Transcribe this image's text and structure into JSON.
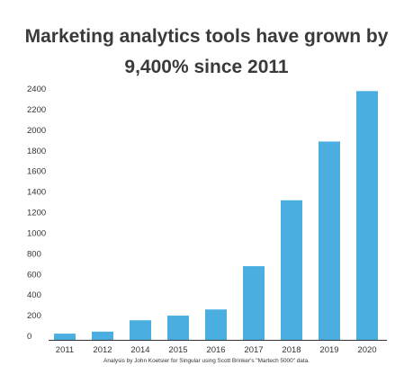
{
  "chart_data": {
    "type": "bar",
    "title_lines": [
      "Marketing analytics tools have grown by",
      "9,400% since 2011"
    ],
    "categories": [
      "2011",
      "2012",
      "2014",
      "2015",
      "2016",
      "2017",
      "2018",
      "2019",
      "2020"
    ],
    "values": [
      25,
      45,
      155,
      200,
      260,
      680,
      1320,
      1890,
      2380
    ],
    "yticks": [
      0,
      200,
      400,
      600,
      800,
      1000,
      1200,
      1400,
      1600,
      1800,
      2000,
      2200,
      2400
    ],
    "ylim": [
      0,
      2400
    ],
    "grid": false,
    "legend": "none",
    "bar_color": "#4aaee1",
    "axis_color": "#333333",
    "footnote": "Analysis by John Koetsier for Singular using Scott Brinker's \"Martech 5000\" data."
  },
  "colors": {
    "title": "#3a3a3a",
    "text": "#333333",
    "bar": "#4aaee1"
  }
}
